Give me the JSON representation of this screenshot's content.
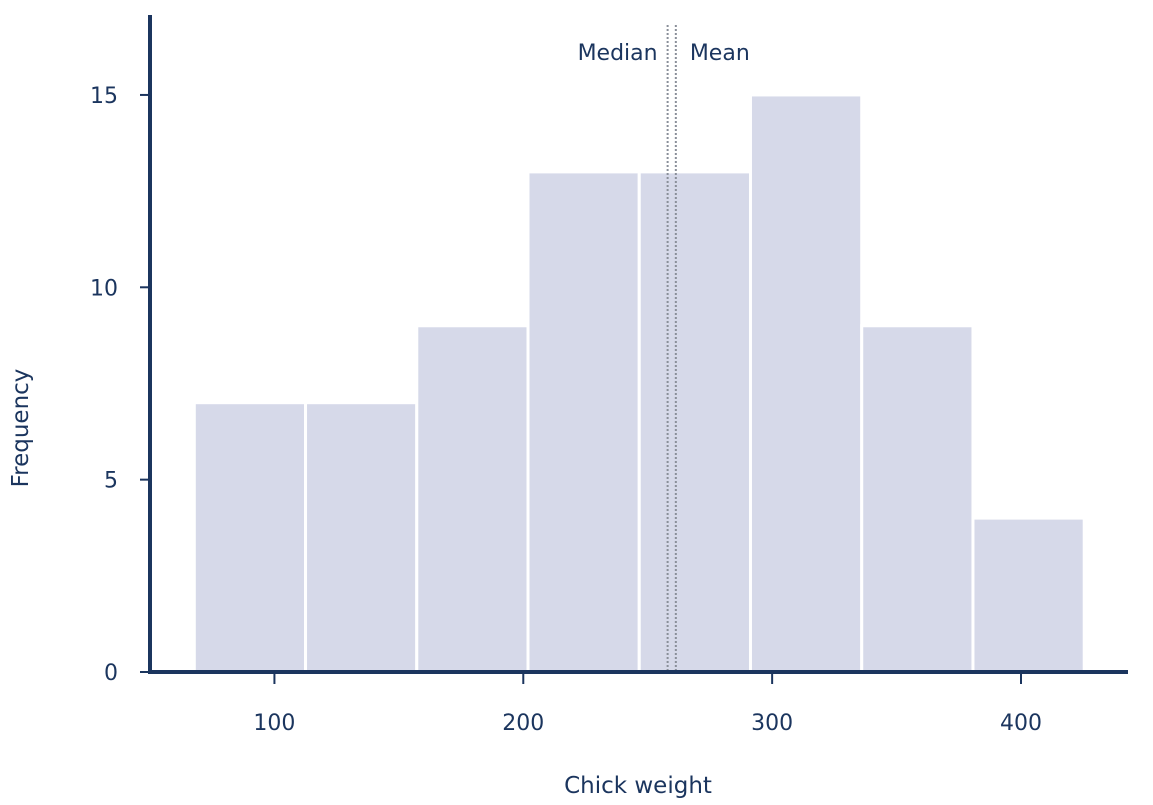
{
  "chart_data": {
    "type": "bar",
    "subtype": "histogram",
    "title": "",
    "xlabel": "Chick weight",
    "ylabel": "Frequency",
    "xlim": [
      50,
      443
    ],
    "ylim": [
      0,
      17
    ],
    "x_ticks": [
      100,
      200,
      300,
      400
    ],
    "y_ticks": [
      0,
      5,
      10,
      15
    ],
    "bins": [
      {
        "start": 67.8,
        "end": 112.5,
        "count": 7
      },
      {
        "start": 112.5,
        "end": 157.2,
        "count": 7
      },
      {
        "start": 157.2,
        "end": 201.9,
        "count": 9
      },
      {
        "start": 201.9,
        "end": 246.6,
        "count": 13
      },
      {
        "start": 246.6,
        "end": 291.3,
        "count": 13
      },
      {
        "start": 291.3,
        "end": 336.0,
        "count": 15
      },
      {
        "start": 336.0,
        "end": 380.7,
        "count": 9
      },
      {
        "start": 380.7,
        "end": 425.4,
        "count": 4
      }
    ],
    "reference_lines": [
      {
        "name": "Median",
        "value": 258.0
      },
      {
        "name": "Mean",
        "value": 261.3
      }
    ]
  },
  "colors": {
    "bar_fill": "#d6d9e9",
    "axis": "#1b355e",
    "reference_line": "#8a8f99"
  }
}
